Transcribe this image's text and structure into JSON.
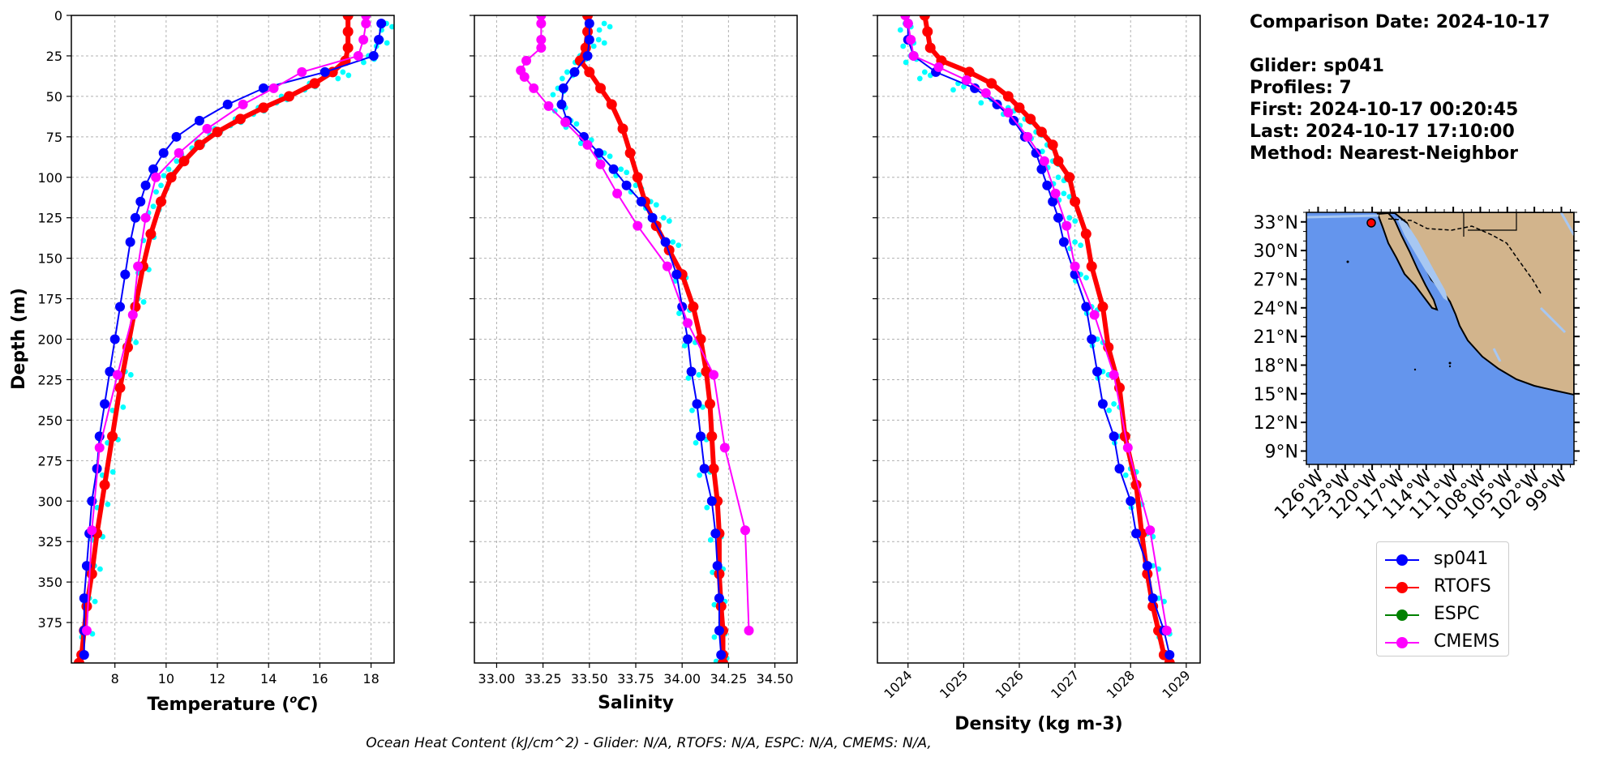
{
  "colors": {
    "glider": "#0000ff",
    "rtofs": "#ff0000",
    "espc": "#008000",
    "cmems": "#ff00ff",
    "raw": "#00ffff",
    "ocean": "#6495ed",
    "land": "#d2b48c"
  },
  "info": {
    "comparison": "Comparison Date: 2024-10-17",
    "glider": "Glider: sp041",
    "profiles": "Profiles: 7",
    "first": "First: 2024-10-17 00:20:45",
    "last": "Last: 2024-10-17 17:10:00",
    "method": "Method: Nearest-Neighbor"
  },
  "legend": [
    {
      "label": "sp041",
      "color": "#0000ff"
    },
    {
      "label": "RTOFS",
      "color": "#ff0000"
    },
    {
      "label": "ESPC",
      "color": "#008000"
    },
    {
      "label": "CMEMS",
      "color": "#ff00ff"
    }
  ],
  "footer": "Ocean Heat Content (kJ/cm^2) - Glider: N/A,  RTOFS: N/A,  ESPC: N/A,  CMEMS: N/A,",
  "map": {
    "lat_ticks": [
      "33°N",
      "30°N",
      "27°N",
      "24°N",
      "21°N",
      "18°N",
      "15°N",
      "12°N",
      "9°N"
    ],
    "lon_ticks": [
      "126°W",
      "123°W",
      "120°W",
      "117°W",
      "114°W",
      "111°W",
      "108°W",
      "105°W",
      "102°W",
      "99°W"
    ],
    "glider_location": {
      "lon": -120.1,
      "lat": 32.9
    }
  },
  "chart_data": [
    {
      "type": "line",
      "xlabel": "Temperature ($^{o}C$)",
      "ylabel": "Depth (m)",
      "xlim": [
        6.3,
        18.9
      ],
      "ylim": [
        400,
        0
      ],
      "xticks": [
        8,
        10,
        12,
        14,
        16,
        18
      ],
      "yticks": [
        0,
        25,
        50,
        75,
        100,
        125,
        150,
        175,
        200,
        225,
        250,
        275,
        300,
        325,
        350,
        375
      ],
      "grid": true,
      "series": [
        {
          "name": "sp041",
          "x": [
            18.4,
            18.3,
            18.1,
            16.2,
            13.8,
            12.4,
            11.3,
            10.4,
            9.9,
            9.5,
            9.2,
            9.0,
            8.8,
            8.6,
            8.4,
            8.2,
            8.0,
            7.8,
            7.6,
            7.4,
            7.3,
            7.1,
            7.0,
            6.9,
            6.8,
            6.8,
            6.8
          ],
          "y": [
            5,
            15,
            25,
            35,
            45,
            55,
            65,
            75,
            85,
            95,
            105,
            115,
            125,
            140,
            160,
            180,
            200,
            220,
            240,
            260,
            280,
            300,
            320,
            340,
            360,
            380,
            395
          ]
        },
        {
          "name": "RTOFS",
          "x": [
            17.1,
            17.1,
            17.1,
            17.0,
            16.5,
            15.8,
            14.8,
            13.8,
            12.9,
            12.0,
            11.3,
            10.7,
            10.2,
            9.8,
            9.4,
            9.1,
            8.8,
            8.5,
            8.2,
            7.9,
            7.6,
            7.3,
            7.1,
            6.9,
            6.8,
            6.7,
            6.6
          ],
          "y": [
            0,
            10,
            20,
            28,
            35,
            42,
            50,
            57,
            64,
            72,
            80,
            90,
            100,
            115,
            135,
            155,
            180,
            205,
            230,
            260,
            290,
            320,
            345,
            365,
            380,
            395,
            400
          ]
        },
        {
          "name": "ESPC",
          "x": [],
          "y": []
        },
        {
          "name": "CMEMS",
          "x": [
            17.8,
            17.8,
            17.7,
            17.5,
            15.3,
            14.2,
            13.0,
            11.6,
            10.5,
            9.6,
            9.2,
            8.9,
            8.7,
            8.1,
            7.4,
            7.1,
            6.9
          ],
          "y": [
            0,
            5,
            15,
            25,
            35,
            45,
            55,
            70,
            85,
            100,
            125,
            155,
            185,
            222,
            267,
            318,
            380
          ]
        }
      ],
      "scatter": {
        "name": "raw glider",
        "x": [
          18.6,
          18.4,
          17.9,
          16.9,
          15.6,
          14.5,
          13.6,
          12.7,
          11.9,
          11.2,
          10.6,
          10.1,
          9.8,
          9.5,
          9.3,
          9.1,
          8.9,
          8.6,
          8.4,
          8.1,
          7.9,
          7.7,
          7.5,
          7.3,
          7.2,
          7.0,
          6.9
        ],
        "y": [
          5,
          15,
          25,
          35,
          42,
          50,
          57,
          64,
          70,
          78,
          86,
          95,
          105,
          118,
          135,
          155,
          175,
          200,
          220,
          240,
          260,
          280,
          300,
          320,
          340,
          360,
          380
        ]
      }
    },
    {
      "type": "line",
      "xlabel": "Salinity",
      "xlim": [
        32.88,
        34.62
      ],
      "ylim": [
        400,
        0
      ],
      "xticks": [
        33.0,
        33.25,
        33.5,
        33.75,
        34.0,
        34.25,
        34.5
      ],
      "xtick_labels": [
        "33.00",
        "33.25",
        "33.50",
        "33.75",
        "34.00",
        "34.25",
        "34.50"
      ],
      "grid": true,
      "series": [
        {
          "name": "sp041",
          "x": [
            33.5,
            33.5,
            33.49,
            33.42,
            33.36,
            33.35,
            33.38,
            33.47,
            33.55,
            33.63,
            33.7,
            33.78,
            33.84,
            33.91,
            33.97,
            34.0,
            34.03,
            34.05,
            34.08,
            34.1,
            34.12,
            34.16,
            34.18,
            34.19,
            34.2,
            34.2,
            34.21
          ],
          "y": [
            5,
            15,
            25,
            35,
            45,
            55,
            65,
            75,
            85,
            95,
            105,
            115,
            125,
            140,
            160,
            180,
            200,
            220,
            240,
            260,
            280,
            300,
            320,
            340,
            360,
            380,
            395
          ]
        },
        {
          "name": "RTOFS",
          "x": [
            33.49,
            33.49,
            33.48,
            33.45,
            33.5,
            33.56,
            33.62,
            33.68,
            33.72,
            33.76,
            33.8,
            33.86,
            33.93,
            34.0,
            34.06,
            34.1,
            34.13,
            34.15,
            34.16,
            34.17,
            34.19,
            34.2,
            34.2,
            34.21,
            34.22,
            34.22,
            34.22
          ],
          "y": [
            0,
            10,
            20,
            28,
            35,
            45,
            55,
            70,
            85,
            100,
            115,
            130,
            145,
            160,
            180,
            200,
            220,
            240,
            260,
            280,
            300,
            320,
            345,
            365,
            380,
            395,
            400
          ]
        },
        {
          "name": "ESPC",
          "x": [],
          "y": []
        },
        {
          "name": "CMEMS",
          "x": [
            33.24,
            33.24,
            33.24,
            33.24,
            33.16,
            33.13,
            33.15,
            33.2,
            33.28,
            33.37,
            33.49,
            33.56,
            33.65,
            33.76,
            33.92,
            34.03,
            34.17,
            34.23,
            34.34,
            34.36
          ],
          "y": [
            0,
            5,
            15,
            20,
            28,
            34,
            38,
            45,
            56,
            66,
            80,
            92,
            110,
            130,
            155,
            190,
            222,
            267,
            318,
            380
          ]
        }
      ],
      "scatter": {
        "name": "raw glider",
        "x": [
          33.58,
          33.55,
          33.45,
          33.38,
          33.33,
          33.34,
          33.4,
          33.48,
          33.58,
          33.67,
          33.75,
          33.83,
          33.9,
          33.95,
          33.99,
          34.01,
          34.04,
          34.06,
          34.08,
          34.1,
          34.12,
          34.16,
          34.18,
          34.19,
          34.2,
          34.2,
          34.21
        ],
        "y": [
          5,
          15,
          25,
          35,
          45,
          55,
          65,
          75,
          85,
          95,
          105,
          115,
          125,
          140,
          160,
          180,
          200,
          220,
          240,
          260,
          280,
          300,
          320,
          340,
          360,
          380,
          395
        ]
      }
    },
    {
      "type": "line",
      "xlabel": "Density (kg m-3)",
      "xlim": [
        1023.45,
        1029.25
      ],
      "ylim": [
        400,
        0
      ],
      "xticks": [
        1024,
        1025,
        1026,
        1027,
        1028,
        1029
      ],
      "grid": true,
      "series": [
        {
          "name": "sp041",
          "x": [
            1024.0,
            1024.0,
            1024.1,
            1024.5,
            1025.2,
            1025.6,
            1025.9,
            1026.1,
            1026.3,
            1026.4,
            1026.5,
            1026.6,
            1026.7,
            1026.8,
            1027.0,
            1027.2,
            1027.3,
            1027.4,
            1027.5,
            1027.7,
            1027.8,
            1028.0,
            1028.1,
            1028.3,
            1028.4,
            1028.6,
            1028.7
          ],
          "y": [
            5,
            15,
            25,
            35,
            45,
            55,
            65,
            75,
            85,
            95,
            105,
            115,
            125,
            140,
            160,
            180,
            200,
            220,
            240,
            260,
            280,
            300,
            320,
            340,
            360,
            380,
            395
          ]
        },
        {
          "name": "RTOFS",
          "x": [
            1024.3,
            1024.35,
            1024.4,
            1024.6,
            1025.1,
            1025.5,
            1025.8,
            1026.0,
            1026.2,
            1026.4,
            1026.6,
            1026.7,
            1026.9,
            1027.0,
            1027.2,
            1027.3,
            1027.5,
            1027.6,
            1027.8,
            1027.9,
            1028.1,
            1028.2,
            1028.3,
            1028.4,
            1028.5,
            1028.6,
            1028.7
          ],
          "y": [
            0,
            10,
            20,
            28,
            35,
            42,
            50,
            57,
            64,
            72,
            80,
            90,
            100,
            115,
            135,
            155,
            180,
            205,
            230,
            260,
            290,
            320,
            345,
            365,
            380,
            395,
            400
          ]
        },
        {
          "name": "ESPC",
          "x": [],
          "y": []
        },
        {
          "name": "CMEMS",
          "x": [
            1023.95,
            1024.0,
            1024.05,
            1024.1,
            1024.55,
            1025.05,
            1025.4,
            1025.8,
            1026.15,
            1026.45,
            1026.65,
            1026.85,
            1027.0,
            1027.35,
            1027.7,
            1027.95,
            1028.35,
            1028.65
          ],
          "y": [
            0,
            5,
            15,
            25,
            32,
            40,
            48,
            60,
            75,
            90,
            110,
            130,
            155,
            185,
            222,
            267,
            318,
            380
          ]
        }
      ],
      "scatter": {
        "name": "raw glider",
        "x": [
          1023.95,
          1024.0,
          1024.05,
          1024.3,
          1024.9,
          1025.4,
          1025.8,
          1026.1,
          1026.3,
          1026.5,
          1026.6,
          1026.7,
          1026.8,
          1026.9,
          1027.0,
          1027.1,
          1027.3,
          1027.4,
          1027.5,
          1027.7,
          1027.8,
          1028.0,
          1028.1,
          1028.3,
          1028.4,
          1028.5,
          1028.6
        ],
        "y": [
          5,
          15,
          25,
          35,
          42,
          50,
          57,
          64,
          72,
          80,
          90,
          100,
          110,
          125,
          140,
          160,
          180,
          200,
          220,
          240,
          260,
          280,
          300,
          320,
          340,
          360,
          380
        ]
      }
    }
  ]
}
